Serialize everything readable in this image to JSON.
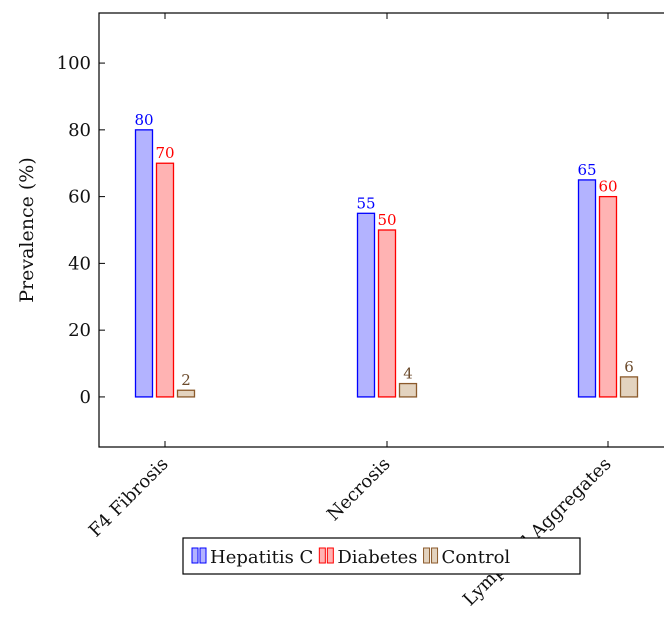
{
  "chart_data": {
    "type": "bar",
    "title": "",
    "xlabel": "",
    "ylabel": "Prevalence (%)",
    "categories": [
      "F4 Fibrosis",
      "Necrosis",
      "Lymphoid Aggregates"
    ],
    "series": [
      {
        "name": "Hepatitis C",
        "values": [
          80,
          55,
          65
        ],
        "fill": "#b3b3ff",
        "stroke": "#0000ff",
        "label_color": "#0000ff"
      },
      {
        "name": "Diabetes",
        "values": [
          70,
          50,
          60
        ],
        "fill": "#ffb3b3",
        "stroke": "#ff0000",
        "label_color": "#ff0000"
      },
      {
        "name": "Control",
        "values": [
          2,
          4,
          6
        ],
        "fill": "#e3d3bf",
        "stroke": "#8b5a2b",
        "label_color": "#6b4a2b"
      }
    ],
    "ylim": [
      -15,
      115
    ],
    "yticks": [
      0,
      20,
      40,
      60,
      80,
      100
    ],
    "grid": false,
    "legend_position": "bottom"
  }
}
